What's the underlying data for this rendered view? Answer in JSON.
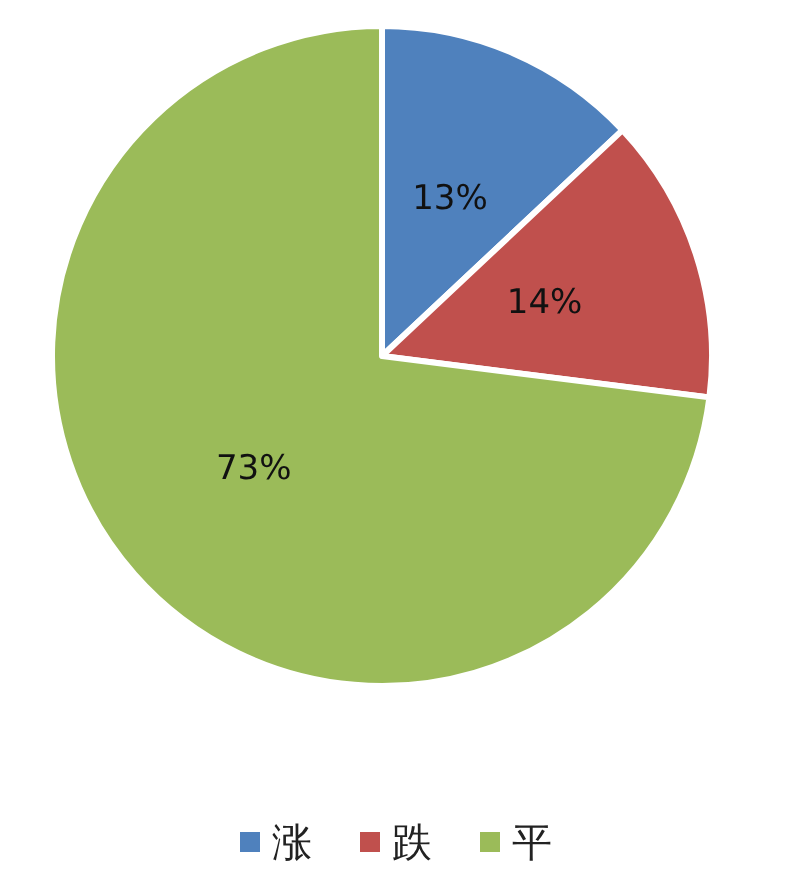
{
  "chart_data": {
    "type": "pie",
    "categories": [
      "涨",
      "跌",
      "平"
    ],
    "values": [
      13,
      14,
      73
    ],
    "colors": [
      "#4f81bd",
      "#c0504d",
      "#9bbb59"
    ],
    "value_labels": [
      "13%",
      "14%",
      "73%"
    ],
    "legend": "bottom"
  }
}
